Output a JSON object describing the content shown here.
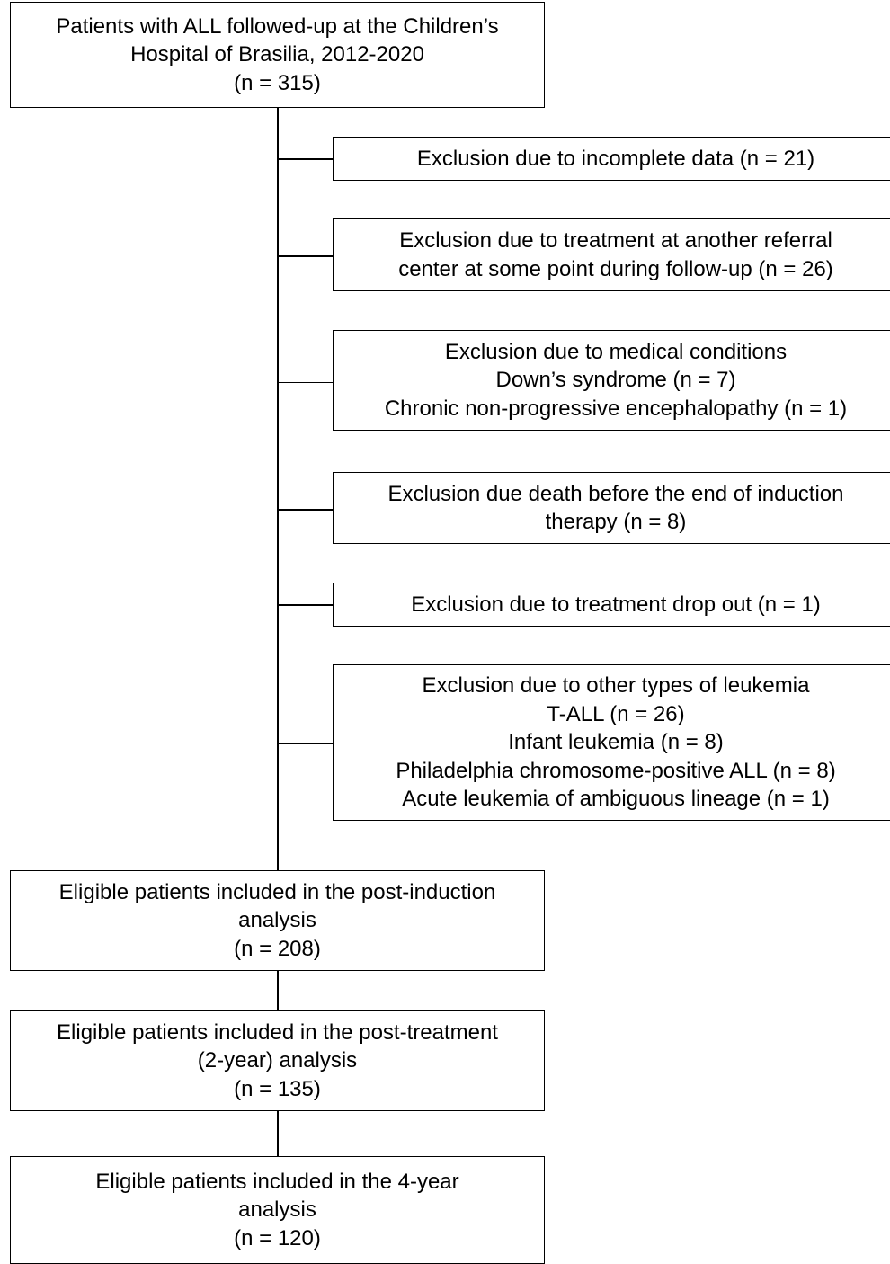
{
  "main_flow": [
    {
      "lines": [
        "Patients with ALL followed-up at the Children’s",
        "Hospital of Brasilia, 2012-2020",
        "(n = 315)"
      ]
    },
    {
      "lines": [
        "Eligible patients included in the post-induction",
        "analysis",
        "(n = 208)"
      ]
    },
    {
      "lines": [
        "Eligible patients included in the post-treatment",
        "(2-year) analysis",
        "(n = 135)"
      ]
    },
    {
      "lines": [
        "Eligible patients included in the 4-year",
        "analysis",
        "(n = 120)"
      ]
    }
  ],
  "exclusions": [
    {
      "lines": [
        "Exclusion due to incomplete data (n = 21)"
      ]
    },
    {
      "lines": [
        "Exclusion due to treatment at another referral",
        "center at some point during follow-up (n = 26)"
      ]
    },
    {
      "lines": [
        "Exclusion due to medical conditions",
        "Down’s syndrome (n = 7)",
        "Chronic non-progressive encephalopathy (n = 1)"
      ]
    },
    {
      "lines": [
        "Exclusion due death before the end of induction",
        "therapy (n = 8)"
      ]
    },
    {
      "lines": [
        "Exclusion due to treatment drop out (n = 1)"
      ]
    },
    {
      "lines": [
        "Exclusion due to other types of leukemia",
        "T-ALL (n = 26)",
        "Infant leukemia (n = 8)",
        "Philadelphia chromosome-positive ALL (n = 8)",
        "Acute leukemia of ambiguous lineage (n = 1)"
      ]
    }
  ]
}
